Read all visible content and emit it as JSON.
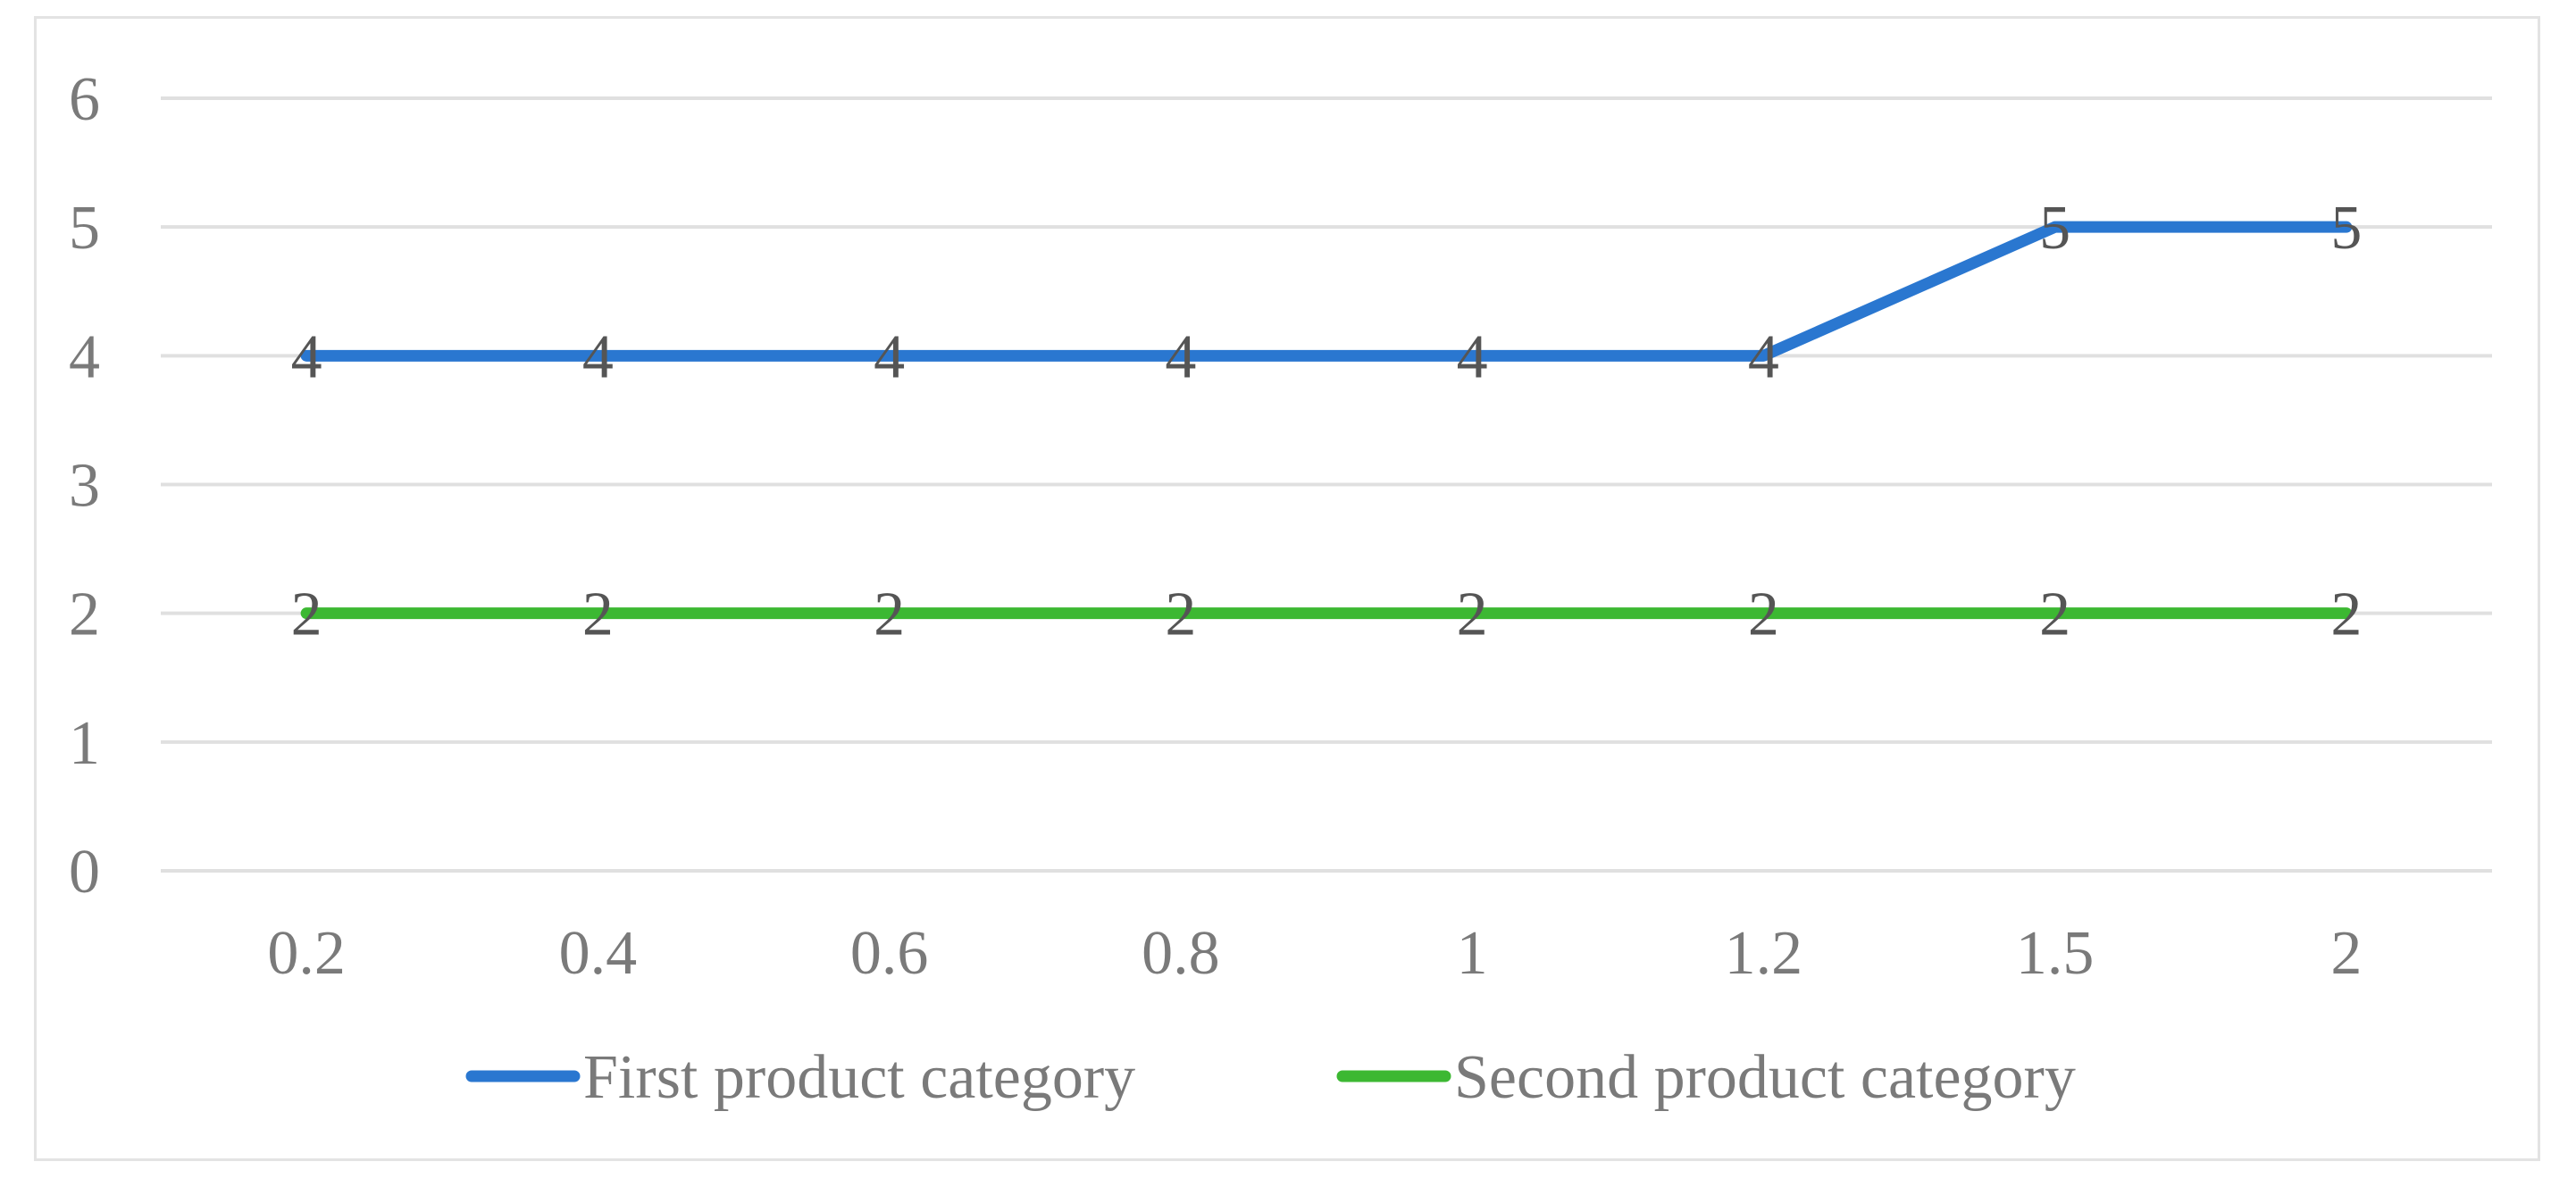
{
  "chart_data": {
    "type": "line",
    "categories": [
      "0.2",
      "0.4",
      "0.6",
      "0.8",
      "1",
      "1.2",
      "1.5",
      "2"
    ],
    "series": [
      {
        "name": "First product category",
        "values": [
          4,
          4,
          4,
          4,
          4,
          4,
          5,
          5
        ],
        "color": "#2a77d0"
      },
      {
        "name": "Second product category",
        "values": [
          2,
          2,
          2,
          2,
          2,
          2,
          2,
          2
        ],
        "color": "#3cb832"
      }
    ],
    "yticks": [
      "0",
      "1",
      "2",
      "3",
      "4",
      "5",
      "6"
    ],
    "ylim": [
      0,
      6
    ],
    "grid": true,
    "data_labels": true,
    "legend_position": "bottom",
    "gridline_color": "#e0e0e0"
  }
}
